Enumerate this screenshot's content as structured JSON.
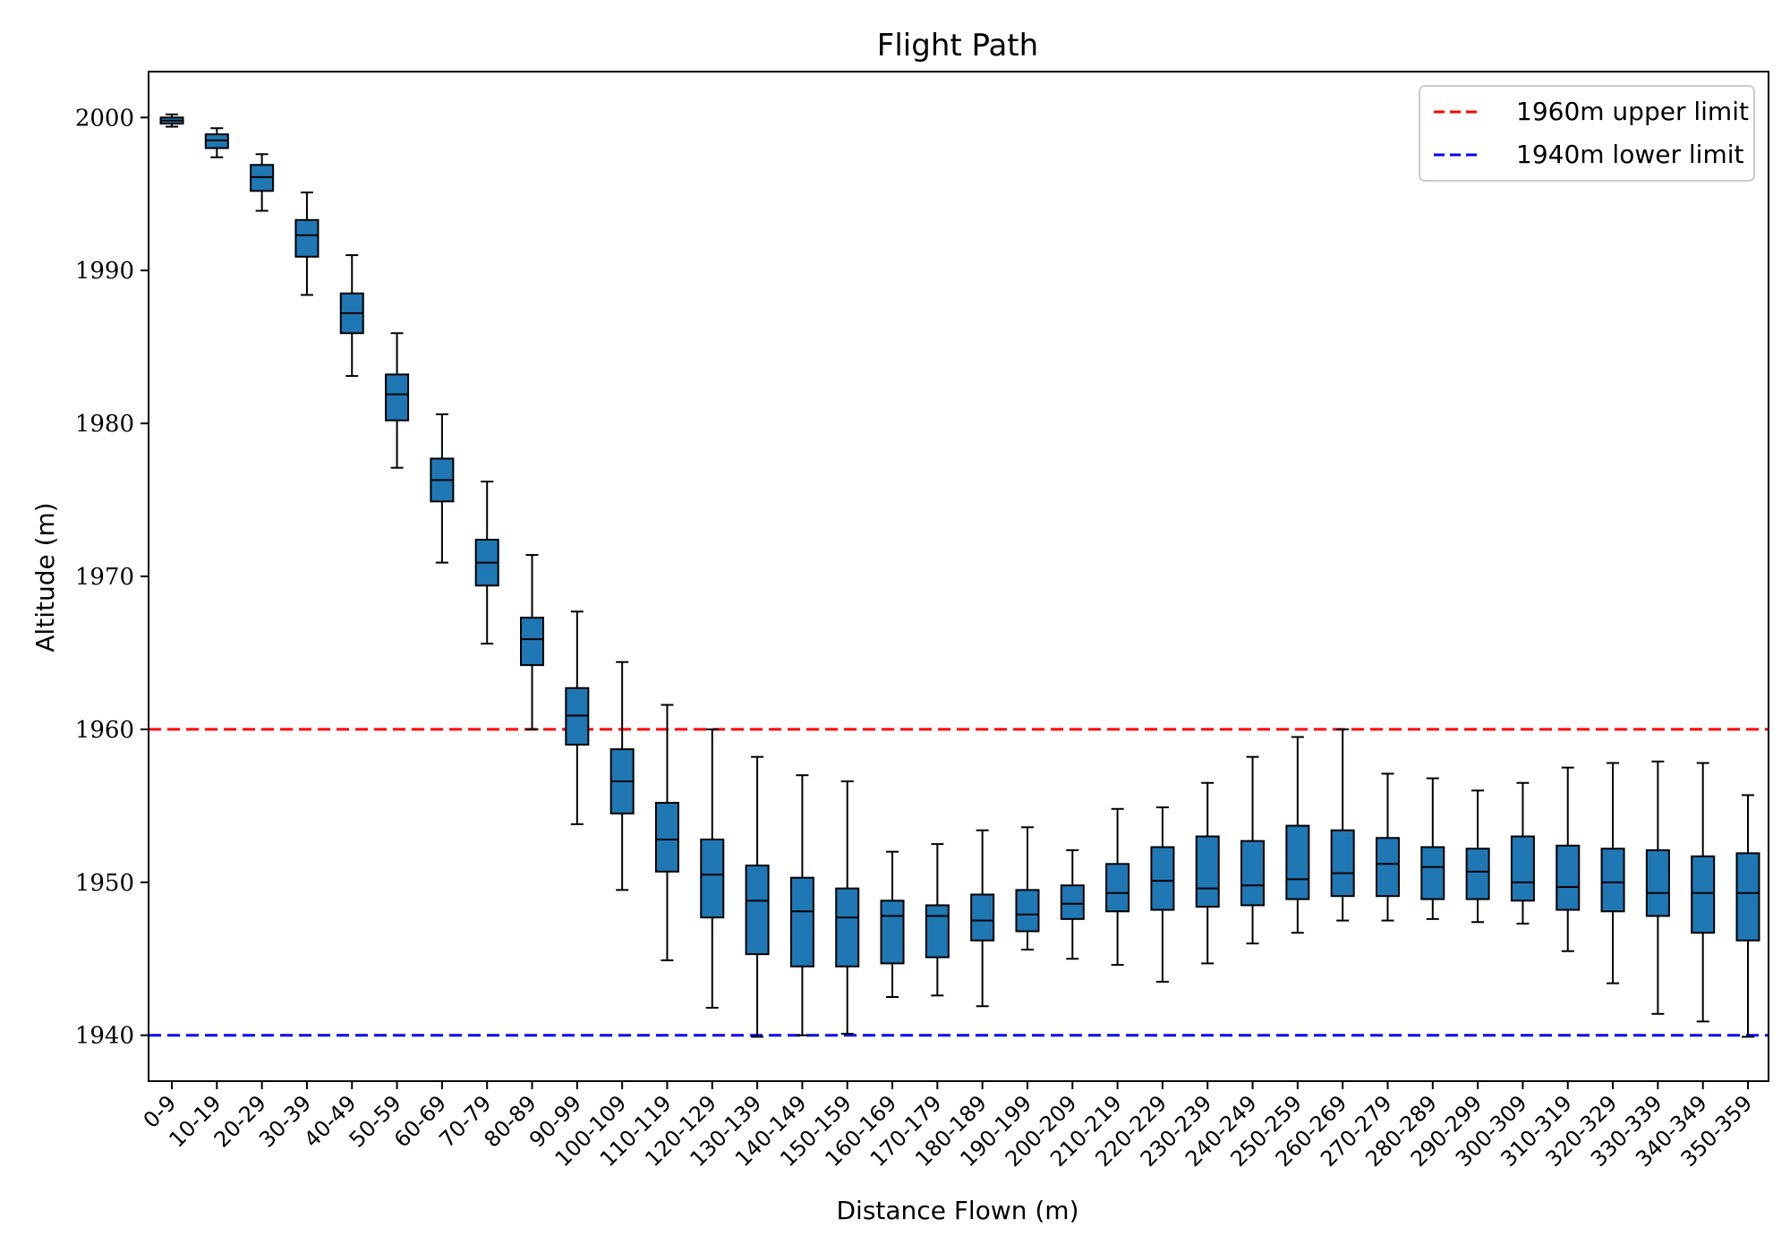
{
  "chart_data": {
    "type": "box",
    "title": "Flight Path",
    "xlabel": "Distance Flown (m)",
    "ylabel": "Altitude (m)",
    "ylim": [
      1937,
      2003
    ],
    "yticks": [
      1940,
      1950,
      1960,
      1970,
      1980,
      1990,
      2000
    ],
    "grid": false,
    "legend_position": "top-right",
    "box_color": "#1f77b4",
    "categories": [
      "0-9",
      "10-19",
      "20-29",
      "30-39",
      "40-49",
      "50-59",
      "60-69",
      "70-79",
      "80-89",
      "90-99",
      "100-109",
      "110-119",
      "120-129",
      "130-139",
      "140-149",
      "150-159",
      "160-169",
      "170-179",
      "180-189",
      "190-199",
      "200-209",
      "210-219",
      "220-229",
      "230-239",
      "240-249",
      "250-259",
      "260-269",
      "270-279",
      "280-289",
      "290-299",
      "300-309",
      "310-319",
      "320-329",
      "330-339",
      "340-349",
      "350-359"
    ],
    "boxes": [
      {
        "whislo": 1999.4,
        "q1": 1999.6,
        "med": 1999.8,
        "q3": 2000.0,
        "whishi": 2000.2
      },
      {
        "whislo": 1997.4,
        "q1": 1998.0,
        "med": 1998.5,
        "q3": 1998.9,
        "whishi": 1999.3
      },
      {
        "whislo": 1993.9,
        "q1": 1995.2,
        "med": 1996.1,
        "q3": 1996.9,
        "whishi": 1997.6
      },
      {
        "whislo": 1988.4,
        "q1": 1990.9,
        "med": 1992.3,
        "q3": 1993.3,
        "whishi": 1995.1
      },
      {
        "whislo": 1983.1,
        "q1": 1985.9,
        "med": 1987.2,
        "q3": 1988.5,
        "whishi": 1991.0
      },
      {
        "whislo": 1977.1,
        "q1": 1980.2,
        "med": 1981.9,
        "q3": 1983.2,
        "whishi": 1985.9
      },
      {
        "whislo": 1970.9,
        "q1": 1974.9,
        "med": 1976.3,
        "q3": 1977.7,
        "whishi": 1980.6
      },
      {
        "whislo": 1965.6,
        "q1": 1969.4,
        "med": 1970.9,
        "q3": 1972.4,
        "whishi": 1976.2
      },
      {
        "whislo": 1960.0,
        "q1": 1964.2,
        "med": 1965.9,
        "q3": 1967.3,
        "whishi": 1971.4
      },
      {
        "whislo": 1953.8,
        "q1": 1959.0,
        "med": 1960.9,
        "q3": 1962.7,
        "whishi": 1967.7
      },
      {
        "whislo": 1949.5,
        "q1": 1954.5,
        "med": 1956.6,
        "q3": 1958.7,
        "whishi": 1964.4
      },
      {
        "whislo": 1944.9,
        "q1": 1950.7,
        "med": 1952.8,
        "q3": 1955.2,
        "whishi": 1961.6
      },
      {
        "whislo": 1941.8,
        "q1": 1947.7,
        "med": 1950.5,
        "q3": 1952.8,
        "whishi": 1960.0
      },
      {
        "whislo": 1939.9,
        "q1": 1945.3,
        "med": 1948.8,
        "q3": 1951.1,
        "whishi": 1958.2
      },
      {
        "whislo": 1940.0,
        "q1": 1944.5,
        "med": 1948.1,
        "q3": 1950.3,
        "whishi": 1957.0
      },
      {
        "whislo": 1940.1,
        "q1": 1944.5,
        "med": 1947.7,
        "q3": 1949.6,
        "whishi": 1956.6
      },
      {
        "whislo": 1942.5,
        "q1": 1944.7,
        "med": 1947.8,
        "q3": 1948.8,
        "whishi": 1952.0
      },
      {
        "whislo": 1942.6,
        "q1": 1945.1,
        "med": 1947.8,
        "q3": 1948.5,
        "whishi": 1952.5
      },
      {
        "whislo": 1941.9,
        "q1": 1946.2,
        "med": 1947.5,
        "q3": 1949.2,
        "whishi": 1953.4
      },
      {
        "whislo": 1945.6,
        "q1": 1946.8,
        "med": 1947.9,
        "q3": 1949.5,
        "whishi": 1953.6
      },
      {
        "whislo": 1945.0,
        "q1": 1947.6,
        "med": 1948.6,
        "q3": 1949.8,
        "whishi": 1952.1
      },
      {
        "whislo": 1944.6,
        "q1": 1948.1,
        "med": 1949.3,
        "q3": 1951.2,
        "whishi": 1954.8
      },
      {
        "whislo": 1943.5,
        "q1": 1948.2,
        "med": 1950.1,
        "q3": 1952.3,
        "whishi": 1954.9
      },
      {
        "whislo": 1944.7,
        "q1": 1948.4,
        "med": 1949.6,
        "q3": 1953.0,
        "whishi": 1956.5
      },
      {
        "whislo": 1946.0,
        "q1": 1948.5,
        "med": 1949.8,
        "q3": 1952.7,
        "whishi": 1958.2
      },
      {
        "whislo": 1946.7,
        "q1": 1948.9,
        "med": 1950.2,
        "q3": 1953.7,
        "whishi": 1959.5
      },
      {
        "whislo": 1947.5,
        "q1": 1949.1,
        "med": 1950.6,
        "q3": 1953.4,
        "whishi": 1960.0
      },
      {
        "whislo": 1947.5,
        "q1": 1949.1,
        "med": 1951.2,
        "q3": 1952.9,
        "whishi": 1957.1
      },
      {
        "whislo": 1947.6,
        "q1": 1948.9,
        "med": 1951.0,
        "q3": 1952.3,
        "whishi": 1956.8
      },
      {
        "whislo": 1947.4,
        "q1": 1948.9,
        "med": 1950.7,
        "q3": 1952.2,
        "whishi": 1956.0
      },
      {
        "whislo": 1947.3,
        "q1": 1948.8,
        "med": 1950.0,
        "q3": 1953.0,
        "whishi": 1956.5
      },
      {
        "whislo": 1945.5,
        "q1": 1948.2,
        "med": 1949.7,
        "q3": 1952.4,
        "whishi": 1957.5
      },
      {
        "whislo": 1943.4,
        "q1": 1948.1,
        "med": 1950.0,
        "q3": 1952.2,
        "whishi": 1957.8
      },
      {
        "whislo": 1941.4,
        "q1": 1947.8,
        "med": 1949.3,
        "q3": 1952.1,
        "whishi": 1957.9
      },
      {
        "whislo": 1940.9,
        "q1": 1946.7,
        "med": 1949.3,
        "q3": 1951.7,
        "whishi": 1957.8
      },
      {
        "whislo": 1939.9,
        "q1": 1946.2,
        "med": 1949.3,
        "q3": 1951.9,
        "whishi": 1955.7
      }
    ],
    "reference_lines": [
      {
        "name": "1960m upper limit",
        "y": 1960,
        "color": "#ff0000",
        "style": "dashed"
      },
      {
        "name": "1940m lower limit",
        "y": 1940,
        "color": "#0000ff",
        "style": "dashed"
      }
    ]
  }
}
